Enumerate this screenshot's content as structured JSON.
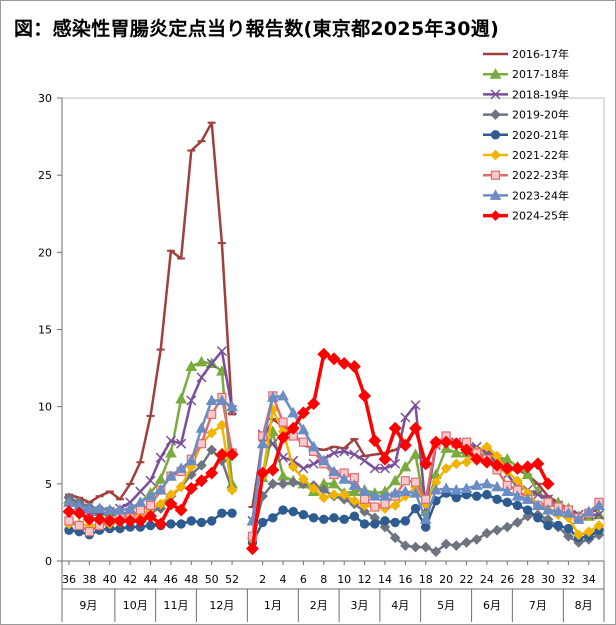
{
  "title": "図：感染性胃腸炎定点当り報告数(東京都2025年30週)",
  "chart_data": {
    "type": "line",
    "title": "図：感染性胃腸炎定点当り報告数(東京都2025年30週)",
    "xlabel": "",
    "ylabel": "",
    "ylim": [
      0,
      30
    ],
    "yticks": [
      0,
      5,
      10,
      15,
      20,
      25,
      30
    ],
    "grid": false,
    "legend_position": "top-right",
    "week_ticks": [
      "36",
      "38",
      "40",
      "42",
      "44",
      "46",
      "48",
      "50",
      "52",
      "2",
      "4",
      "6",
      "8",
      "10",
      "12",
      "14",
      "16",
      "18",
      "20",
      "22",
      "24",
      "26",
      "28",
      "30",
      "32",
      "34"
    ],
    "months": [
      "9月",
      "10月",
      "11月",
      "12月",
      "1月",
      "2月",
      "3月",
      "4月",
      "5月",
      "6月",
      "7月",
      "8月"
    ],
    "x": [
      "36",
      "37",
      "38",
      "39",
      "40",
      "41",
      "42",
      "43",
      "44",
      "45",
      "46",
      "47",
      "48",
      "49",
      "50",
      "51",
      "52",
      "53",
      "1",
      "2",
      "3",
      "4",
      "5",
      "6",
      "7",
      "8",
      "9",
      "10",
      "11",
      "12",
      "13",
      "14",
      "15",
      "16",
      "17",
      "18",
      "19",
      "20",
      "21",
      "22",
      "23",
      "24",
      "25",
      "26",
      "27",
      "28",
      "29",
      "30",
      "31",
      "32",
      "33",
      "34",
      "35"
    ],
    "series": [
      {
        "name": "2016-17年",
        "color": "#a0403c",
        "marker": "dash",
        "values": [
          4.3,
          4.1,
          3.8,
          4.2,
          4.5,
          4.0,
          5.0,
          6.4,
          9.4,
          13.7,
          20.1,
          19.6,
          26.6,
          27.2,
          28.4,
          20.6,
          9.5,
          null,
          3.5,
          7.8,
          9.2,
          8.7,
          8.3,
          7.5,
          7.3,
          7.2,
          7.4,
          7.3,
          7.9,
          6.8,
          6.9,
          7.0,
          7.2,
          7.6,
          8.6,
          6.1,
          7.8,
          7.9,
          7.5,
          7.4,
          7.3,
          7.1,
          6.7,
          6.2,
          5.9,
          5.6,
          5.0,
          4.2,
          3.8,
          3.2,
          2.9,
          3.1,
          3.4
        ]
      },
      {
        "name": "2017-18年",
        "color": "#7aab3f",
        "marker": "triangle",
        "values": [
          4.0,
          3.8,
          3.4,
          3.2,
          3.0,
          3.0,
          3.2,
          3.8,
          4.4,
          5.3,
          7.0,
          10.5,
          12.6,
          12.9,
          12.8,
          12.3,
          5.0,
          null,
          2.6,
          5.4,
          8.4,
          5.5,
          5.2,
          5.0,
          4.5,
          5.0,
          5.0,
          4.4,
          4.5,
          4.6,
          4.4,
          4.5,
          5.2,
          6.1,
          6.9,
          3.2,
          5.6,
          7.3,
          7.0,
          7.0,
          7.0,
          6.9,
          6.7,
          6.6,
          6.1,
          5.6,
          4.5,
          3.8,
          3.8,
          3.4,
          2.9,
          2.9,
          3.0
        ]
      },
      {
        "name": "2018-19年",
        "color": "#7a4f9a",
        "marker": "x",
        "values": [
          3.9,
          3.4,
          3.2,
          3.0,
          3.2,
          3.4,
          3.8,
          4.5,
          5.2,
          6.7,
          7.8,
          7.6,
          10.4,
          11.9,
          12.8,
          13.6,
          9.8,
          null,
          2.6,
          8.2,
          7.6,
          6.7,
          6.5,
          6.0,
          6.3,
          6.6,
          7.0,
          7.1,
          6.9,
          6.5,
          6.0,
          6.0,
          6.3,
          9.3,
          10.1,
          3.4,
          7.5,
          8.0,
          7.7,
          7.6,
          7.4,
          7.0,
          6.3,
          5.6,
          4.8,
          4.6,
          4.3,
          4.0,
          3.6,
          3.3,
          3.0,
          3.0,
          3.0
        ]
      },
      {
        "name": "2019-20年",
        "color": "#6e7380",
        "marker": "diamond",
        "values": [
          4.1,
          3.8,
          3.5,
          3.4,
          3.3,
          3.1,
          3.1,
          3.1,
          3.2,
          3.4,
          4.2,
          4.8,
          5.6,
          6.2,
          7.2,
          6.5,
          4.6,
          null,
          1.5,
          4.2,
          5.0,
          5.0,
          5.1,
          5.0,
          4.9,
          4.6,
          4.2,
          4.0,
          3.7,
          3.2,
          2.8,
          2.2,
          1.5,
          1.0,
          0.9,
          0.9,
          0.6,
          1.1,
          1.0,
          1.2,
          1.4,
          1.8,
          2.0,
          2.2,
          2.5,
          2.9,
          3.0,
          2.7,
          2.2,
          1.6,
          1.2,
          1.4,
          1.7
        ]
      },
      {
        "name": "2020-21年",
        "color": "#2e5c91",
        "marker": "circle",
        "values": [
          2.0,
          1.9,
          1.7,
          2.0,
          2.1,
          2.1,
          2.2,
          2.2,
          2.3,
          2.3,
          2.4,
          2.4,
          2.6,
          2.5,
          2.6,
          3.1,
          3.1,
          null,
          1.2,
          2.5,
          2.8,
          3.3,
          3.2,
          3.0,
          2.8,
          2.7,
          2.8,
          2.7,
          2.9,
          2.4,
          2.4,
          2.6,
          2.5,
          2.6,
          3.4,
          2.2,
          3.9,
          4.4,
          4.1,
          4.3,
          4.2,
          4.3,
          4.0,
          3.8,
          3.6,
          3.3,
          2.8,
          2.3,
          2.3,
          2.1,
          1.5,
          1.6,
          2.0
        ]
      },
      {
        "name": "2021-22年",
        "color": "#f2b400",
        "marker": "diamond",
        "values": [
          2.4,
          2.4,
          2.3,
          2.3,
          2.4,
          2.5,
          2.6,
          2.9,
          3.4,
          3.7,
          4.3,
          4.8,
          6.1,
          7.6,
          8.3,
          8.8,
          4.6,
          null,
          1.4,
          5.5,
          9.8,
          8.4,
          6.1,
          5.3,
          4.7,
          4.1,
          4.3,
          4.3,
          3.9,
          3.6,
          3.5,
          3.4,
          3.6,
          4.2,
          4.8,
          3.7,
          5.1,
          6.0,
          6.3,
          6.4,
          7.1,
          7.4,
          6.8,
          5.8,
          5.2,
          4.4,
          3.6,
          3.3,
          3.0,
          2.8,
          1.7,
          1.9,
          2.3
        ]
      },
      {
        "name": "2022-23年",
        "color": "#e06c70",
        "marker": "square",
        "values": [
          2.6,
          2.3,
          1.9,
          2.3,
          2.6,
          2.8,
          2.8,
          3.3,
          3.6,
          4.6,
          5.5,
          5.8,
          6.6,
          7.6,
          9.5,
          10.6,
          7.0,
          null,
          1.6,
          8.1,
          10.7,
          9.0,
          8.1,
          7.7,
          7.1,
          6.3,
          5.6,
          5.7,
          5.4,
          4.0,
          3.5,
          3.7,
          4.2,
          5.2,
          5.1,
          4.0,
          7.6,
          8.1,
          7.6,
          7.7,
          7.0,
          6.6,
          5.9,
          4.9,
          4.6,
          4.0,
          3.6,
          3.8,
          3.5,
          3.3,
          2.8,
          3.1,
          3.8
        ]
      },
      {
        "name": "2023-24年",
        "color": "#6b8cc4",
        "marker": "triangle",
        "values": [
          3.8,
          3.6,
          3.4,
          3.4,
          3.3,
          3.3,
          3.4,
          3.8,
          4.2,
          4.6,
          5.5,
          6.0,
          6.5,
          8.6,
          10.4,
          10.4,
          10.0,
          null,
          2.6,
          7.6,
          10.6,
          10.7,
          9.6,
          8.5,
          7.4,
          6.5,
          5.8,
          5.3,
          4.9,
          4.5,
          4.2,
          4.2,
          4.4,
          4.5,
          4.4,
          2.7,
          4.6,
          4.7,
          4.6,
          4.7,
          4.9,
          5.0,
          4.8,
          4.5,
          4.2,
          4.0,
          3.6,
          3.3,
          3.2,
          3.1,
          2.7,
          3.2,
          3.6
        ]
      },
      {
        "name": "2024-25年",
        "color": "#ff0000",
        "marker": "diamond",
        "values": [
          3.2,
          3.1,
          2.7,
          2.7,
          2.6,
          2.6,
          2.6,
          2.6,
          2.9,
          2.4,
          3.7,
          3.3,
          4.7,
          5.2,
          5.7,
          6.9,
          6.9,
          null,
          0.8,
          5.7,
          5.9,
          8.0,
          8.6,
          9.6,
          10.2,
          13.4,
          13.1,
          12.8,
          12.6,
          10.7,
          7.8,
          6.6,
          8.6,
          7.5,
          8.6,
          6.3,
          7.7,
          7.7,
          7.6,
          7.2,
          6.6,
          6.4,
          6.2,
          6.0,
          6.0,
          6.1,
          6.3,
          5.0,
          null,
          null,
          null,
          null,
          null
        ]
      }
    ]
  }
}
